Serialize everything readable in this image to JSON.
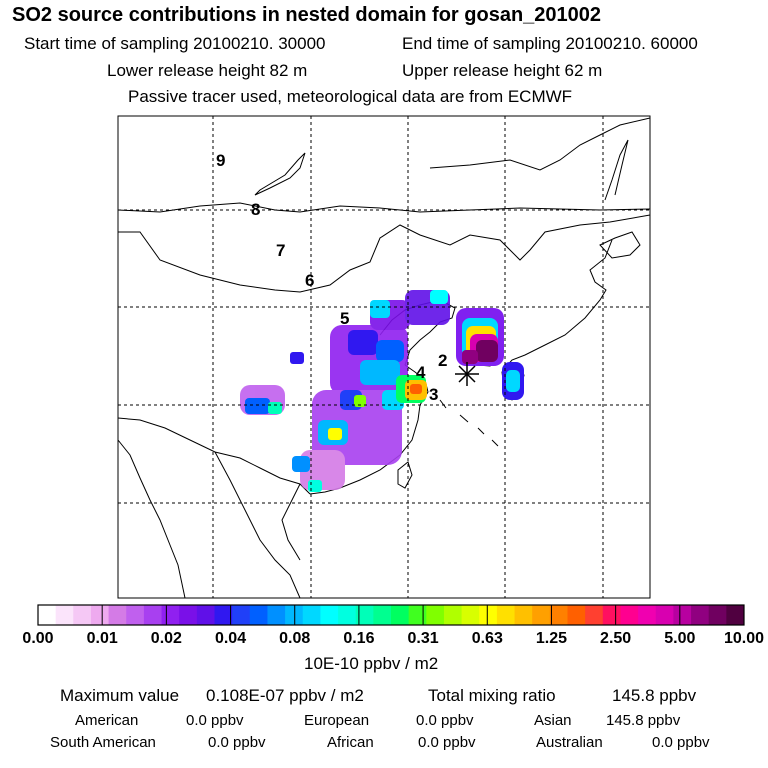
{
  "header": {
    "title": "SO2 source contributions in nested domain for gosan_201002",
    "start_label": "Start time of sampling 20100210. 30000",
    "end_label": "End time of sampling 20100210. 60000",
    "lower_height": "Lower release height   82 m",
    "upper_height": "Upper release height   62 m",
    "tracer_note": "Passive tracer used, meteorological data are from ECMWF"
  },
  "trajectory_labels": [
    "2",
    "3",
    "4",
    "5",
    "6",
    "7",
    "8",
    "9"
  ],
  "colorbar": {
    "tick_labels": [
      "0.00",
      "0.01",
      "0.02",
      "0.04",
      "0.08",
      "0.16",
      "0.31",
      "0.63",
      "1.25",
      "2.50",
      "5.00",
      "10.00"
    ],
    "colors": [
      "#ffffff",
      "#fbe4fb",
      "#f5c8f5",
      "#eeaaef",
      "#d47be6",
      "#c060ee",
      "#a840f0",
      "#9020f0",
      "#7a10e8",
      "#6010e8",
      "#3018f0",
      "#2040f8",
      "#0060ff",
      "#0090ff",
      "#00b8ff",
      "#00d8ff",
      "#00ffff",
      "#00ffe0",
      "#00ffb8",
      "#00ff90",
      "#00ff60",
      "#40ff20",
      "#80ff00",
      "#b0ff00",
      "#d8ff00",
      "#ffff00",
      "#ffe000",
      "#ffc000",
      "#ffa000",
      "#ff8000",
      "#ff6000",
      "#ff4030",
      "#ff1060",
      "#ff0090",
      "#f000b0",
      "#d800b0",
      "#b800a0",
      "#900080",
      "#700060",
      "#500040"
    ],
    "units": "10E-10 ppbv / m2"
  },
  "stats": {
    "max_label": "Maximum value",
    "max_value": "0.108E-07 ppbv / m2",
    "total_label": "Total mixing ratio",
    "total_value": "145.8 ppbv"
  },
  "sources": [
    {
      "name": "American",
      "value": "0.0 ppbv"
    },
    {
      "name": "European",
      "value": "0.0 ppbv"
    },
    {
      "name": "Asian",
      "value": "145.8 ppbv"
    },
    {
      "name": "South American",
      "value": "0.0 ppbv"
    },
    {
      "name": "African",
      "value": "0.0 ppbv"
    },
    {
      "name": "Australian",
      "value": "0.0 ppbv"
    }
  ]
}
